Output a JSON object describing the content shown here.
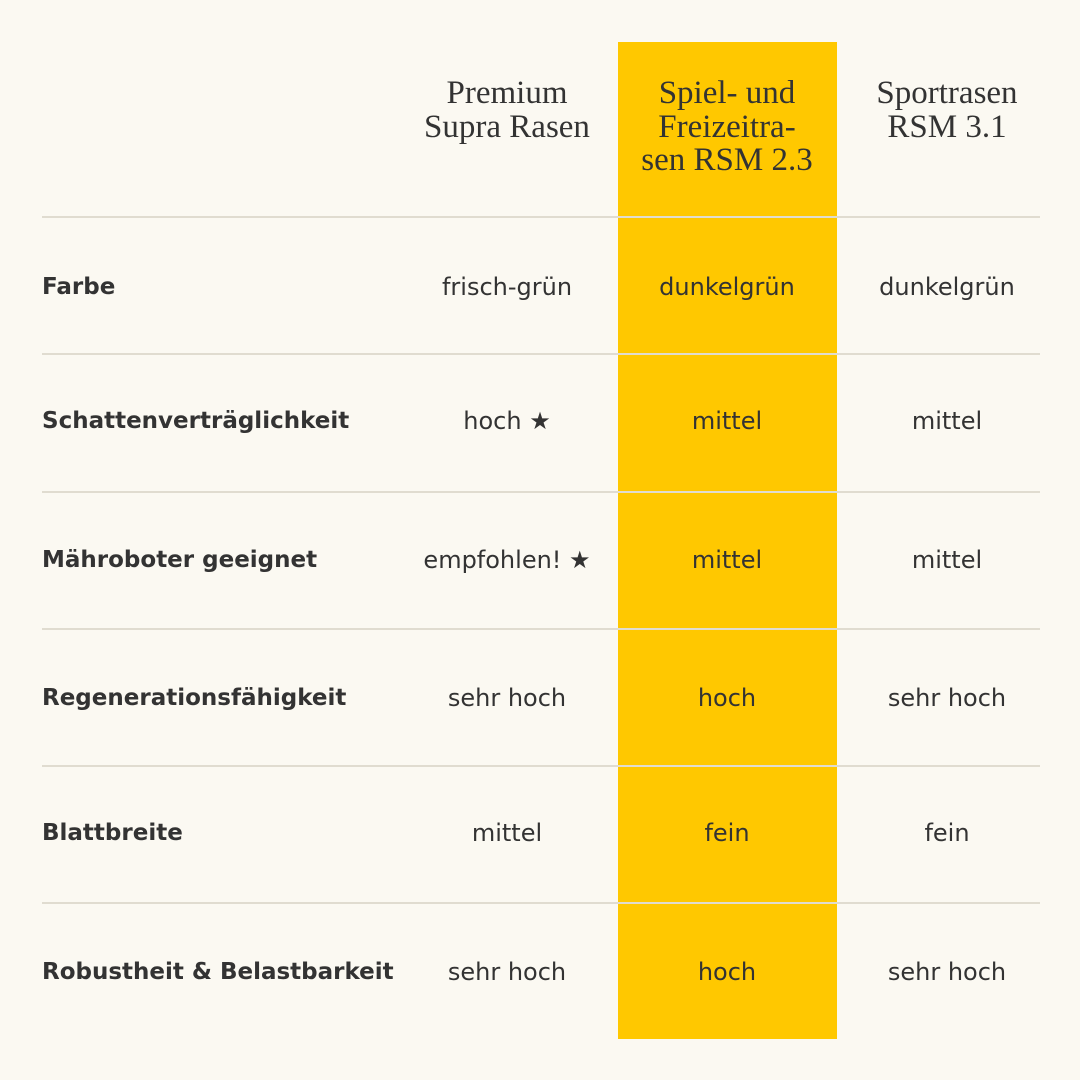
{
  "table": {
    "columns": [
      [
        "Premium",
        "Supra Rasen"
      ],
      [
        "Spiel- und",
        "Freizeitra-",
        "sen RSM 2.3"
      ],
      [
        "Sportrasen",
        "RSM 3.1"
      ]
    ],
    "rows": [
      [
        "Farbe",
        "frisch-grün",
        "dunkelgrün",
        "dunkelgrün"
      ],
      [
        "Schattenverträglichkeit",
        "hoch ★",
        "mittel",
        "mittel"
      ],
      [
        "Mähroboter geeignet",
        "empfohlen! ★",
        "mittel",
        "mittel"
      ],
      [
        "Regenerationsfähigkeit",
        "sehr hoch",
        "hoch",
        "sehr hoch"
      ],
      [
        "Blattbreite",
        "mittel",
        "fein",
        "fein"
      ],
      [
        "Robustheit & Belastbarkeit",
        "sehr hoch",
        "hoch",
        "sehr hoch"
      ]
    ]
  }
}
